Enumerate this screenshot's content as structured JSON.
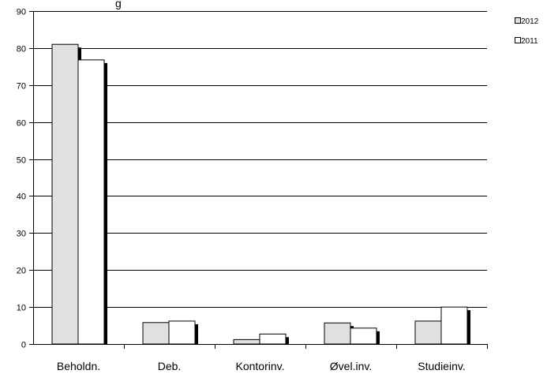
{
  "chart_data": {
    "type": "bar",
    "title_fragment": "g",
    "categories": [
      "Beholdn.",
      "Deb.",
      "Kontorinv.",
      "Øvel.inv.",
      "Studieinv."
    ],
    "series": [
      {
        "name": "2012",
        "values": [
          81,
          5.8,
          1.2,
          5.7,
          6.2
        ],
        "color": "#e0e0e0"
      },
      {
        "name": "2011",
        "values": [
          76.8,
          6.2,
          2.7,
          4.3,
          10.0
        ],
        "color": "#ffffff"
      }
    ],
    "ylim": [
      0,
      90
    ],
    "yticks": [
      0,
      10,
      20,
      30,
      40,
      50,
      60,
      70,
      80,
      90
    ],
    "grid": true,
    "legend_position": "top-right",
    "shadow_color": "#000000"
  }
}
